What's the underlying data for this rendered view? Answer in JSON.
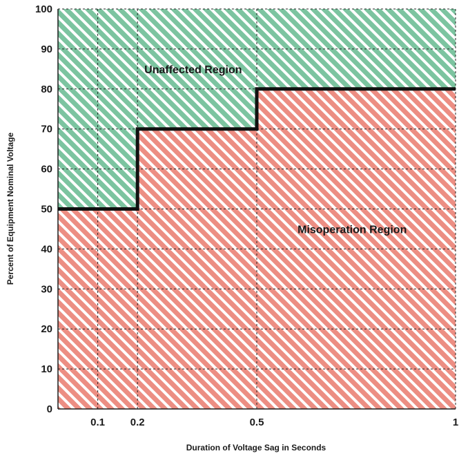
{
  "chart_data": {
    "type": "area",
    "title": "",
    "xlabel": "Duration of Voltage Sag in Seconds",
    "ylabel": "Percent of Equipment Nominal Voltage",
    "xlim": [
      0,
      1
    ],
    "ylim": [
      0,
      100
    ],
    "x_ticks": [
      0.1,
      0.2,
      0.5,
      1
    ],
    "x_tick_labels": [
      "0.1",
      "0.2",
      "0.5",
      "1"
    ],
    "y_ticks": [
      0,
      10,
      20,
      30,
      40,
      50,
      60,
      70,
      80,
      90,
      100
    ],
    "y_tick_labels": [
      "0",
      "10",
      "20",
      "30",
      "40",
      "50",
      "60",
      "70",
      "80",
      "90",
      "100"
    ],
    "grid": true,
    "boundary": {
      "name": "",
      "x": [
        0,
        0.2,
        0.2,
        0.5,
        0.5,
        1
      ],
      "y": [
        50,
        50,
        70,
        70,
        80,
        80
      ]
    },
    "regions": [
      {
        "name": "Unaffected Region",
        "position": "above boundary",
        "color": "#7cc4a0"
      },
      {
        "name": "Misoperation Region",
        "position": "below boundary",
        "color": "#ec8e83"
      }
    ],
    "annotations": [
      {
        "text": "Unaffected Region",
        "x": 0.34,
        "y": 85
      },
      {
        "text": "Misoperation Region",
        "x": 0.74,
        "y": 45
      }
    ]
  }
}
